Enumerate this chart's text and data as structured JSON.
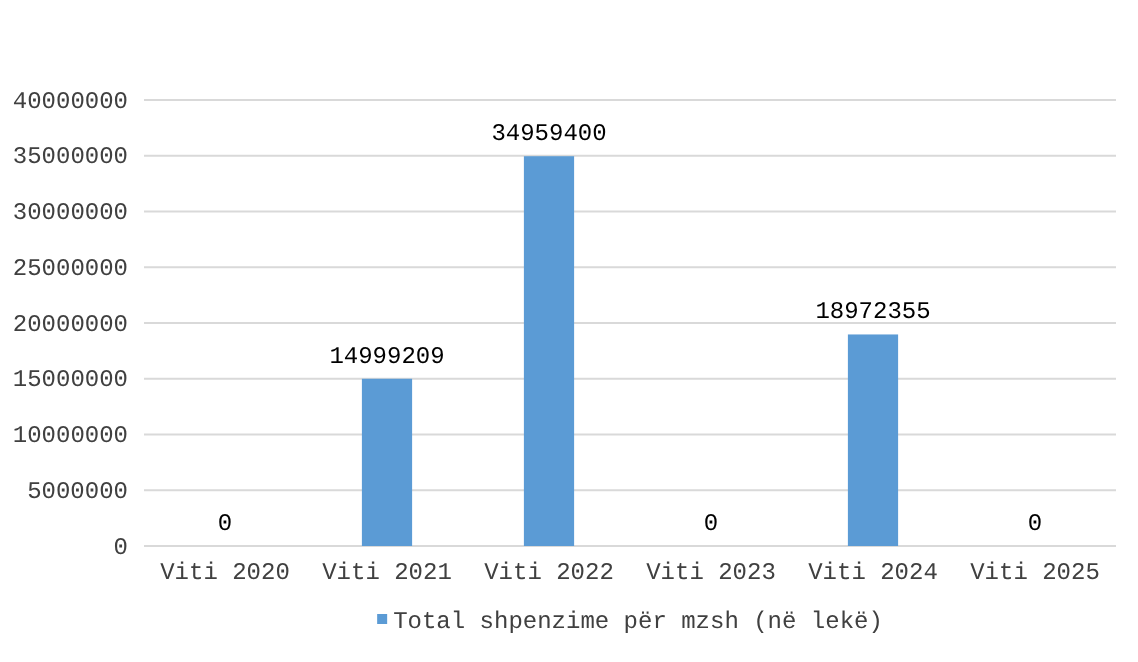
{
  "chart_data": {
    "type": "bar",
    "categories": [
      "Viti 2020",
      "Viti 2021",
      "Viti 2022",
      "Viti 2023",
      "Viti 2024",
      "Viti 2025"
    ],
    "series": [
      {
        "name": "Total shpenzime për mzsh (në lekë)",
        "color": "#5b9bd5",
        "values": [
          0,
          14999209,
          34959400,
          0,
          18972355,
          0
        ]
      }
    ],
    "ylim": [
      0,
      40000000
    ],
    "yticks": [
      0,
      5000000,
      10000000,
      15000000,
      20000000,
      25000000,
      30000000,
      35000000,
      40000000
    ],
    "grid": "y",
    "data_labels": true,
    "legend": "bottom"
  }
}
